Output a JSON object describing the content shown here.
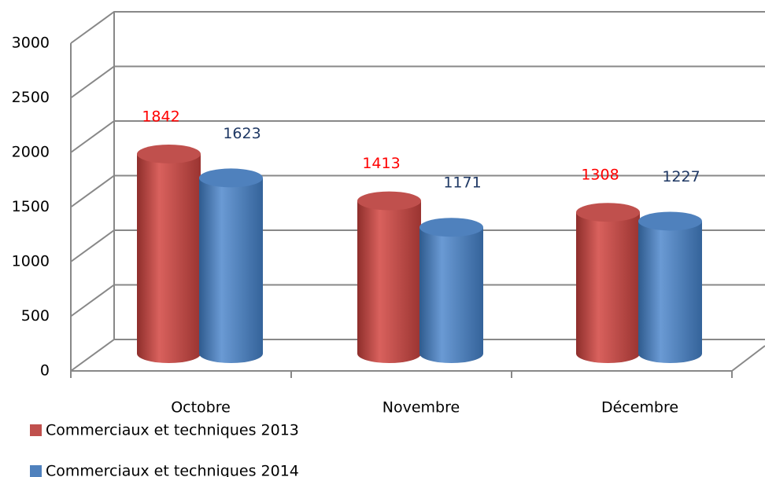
{
  "chart_data": {
    "type": "bar3d",
    "categories": [
      "Octobre",
      "Novembre",
      "Décembre"
    ],
    "series": [
      {
        "name": "Commerciaux et techniques 2013",
        "color": "#c0504d",
        "label_color": "#ff0000",
        "values": [
          1842,
          1413,
          1308
        ]
      },
      {
        "name": "Commerciaux et techniques 2014",
        "color": "#4f81bd",
        "label_color": "#1f3864",
        "values": [
          1623,
          1171,
          1227
        ]
      }
    ],
    "ylim": [
      0,
      3000
    ],
    "yticks": [
      0,
      500,
      1000,
      1500,
      2000,
      2500,
      3000
    ],
    "grid": true,
    "legend": "bottom-left"
  }
}
